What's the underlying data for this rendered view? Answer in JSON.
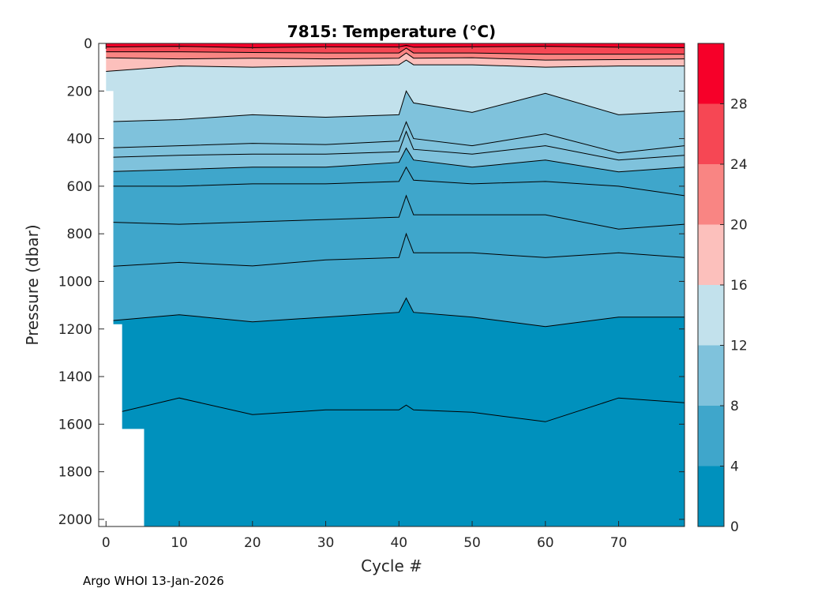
{
  "chart_data": {
    "type": "contour",
    "float_id": "7815",
    "variable": "Temperature",
    "title": "7815:  Temperature (°C)",
    "xlabel": "Cycle #",
    "ylabel": "Pressure (dbar)",
    "xlim": [
      -1,
      79
    ],
    "ylim": [
      2030,
      0
    ],
    "x_ticks": [
      0,
      10,
      20,
      30,
      40,
      50,
      60,
      70
    ],
    "y_ticks": [
      0,
      200,
      400,
      600,
      800,
      1000,
      1200,
      1400,
      1600,
      1800,
      2000
    ],
    "colorbar": {
      "levels": [
        0,
        4,
        8,
        12,
        16,
        20,
        24,
        28,
        32
      ],
      "tick_labels": [
        0,
        4,
        8,
        12,
        16,
        20,
        24,
        28
      ],
      "colors": [
        "#0091bd",
        "#3fa6cb",
        "#7fc2dc",
        "#c2e1ec",
        "#fcc0bc",
        "#f98583",
        "#f64754",
        "#f60029"
      ]
    },
    "cycles": [
      0,
      10,
      20,
      30,
      40,
      41,
      42,
      50,
      60,
      70,
      78
    ],
    "isotherms": [
      {
        "temp": 28,
        "depths": [
          15,
          12,
          18,
          14,
          15,
          8,
          16,
          14,
          12,
          16,
          18
        ]
      },
      {
        "temp": 24,
        "depths": [
          35,
          35,
          38,
          40,
          40,
          20,
          40,
          40,
          45,
          45,
          45
        ]
      },
      {
        "temp": 20,
        "depths": [
          60,
          65,
          62,
          65,
          62,
          40,
          62,
          60,
          70,
          68,
          65
        ]
      },
      {
        "temp": 16,
        "depths": [
          120,
          95,
          100,
          95,
          90,
          70,
          90,
          90,
          100,
          95,
          95
        ]
      },
      {
        "temp": 12,
        "depths": [
          330,
          320,
          300,
          310,
          300,
          200,
          250,
          290,
          210,
          300,
          285
        ]
      },
      {
        "temp": 10,
        "depths": [
          440,
          430,
          420,
          425,
          410,
          330,
          400,
          430,
          380,
          460,
          430
        ]
      },
      {
        "temp": 9,
        "depths": [
          480,
          470,
          465,
          465,
          455,
          370,
          445,
          465,
          430,
          490,
          470
        ]
      },
      {
        "temp": 8,
        "depths": [
          540,
          530,
          520,
          520,
          500,
          440,
          490,
          520,
          490,
          540,
          520
        ]
      },
      {
        "temp": 7,
        "depths": [
          600,
          600,
          590,
          590,
          580,
          520,
          575,
          590,
          580,
          600,
          640
        ]
      },
      {
        "temp": 6,
        "depths": [
          750,
          760,
          750,
          740,
          730,
          640,
          720,
          720,
          720,
          780,
          760
        ]
      },
      {
        "temp": 5,
        "depths": [
          940,
          920,
          935,
          910,
          900,
          800,
          880,
          880,
          900,
          880,
          900
        ]
      },
      {
        "temp": 4,
        "depths": [
          1170,
          1140,
          1170,
          1150,
          1130,
          1070,
          1130,
          1150,
          1190,
          1150,
          1150
        ]
      },
      {
        "temp": 3,
        "depths": [
          1570,
          1490,
          1560,
          1540,
          1540,
          1520,
          1540,
          1550,
          1590,
          1490,
          1510
        ]
      }
    ],
    "missing_data": "white region at cycles 0–5 below ~1180 dbar",
    "footer": "Argo WHOI 13-Jan-2026"
  }
}
